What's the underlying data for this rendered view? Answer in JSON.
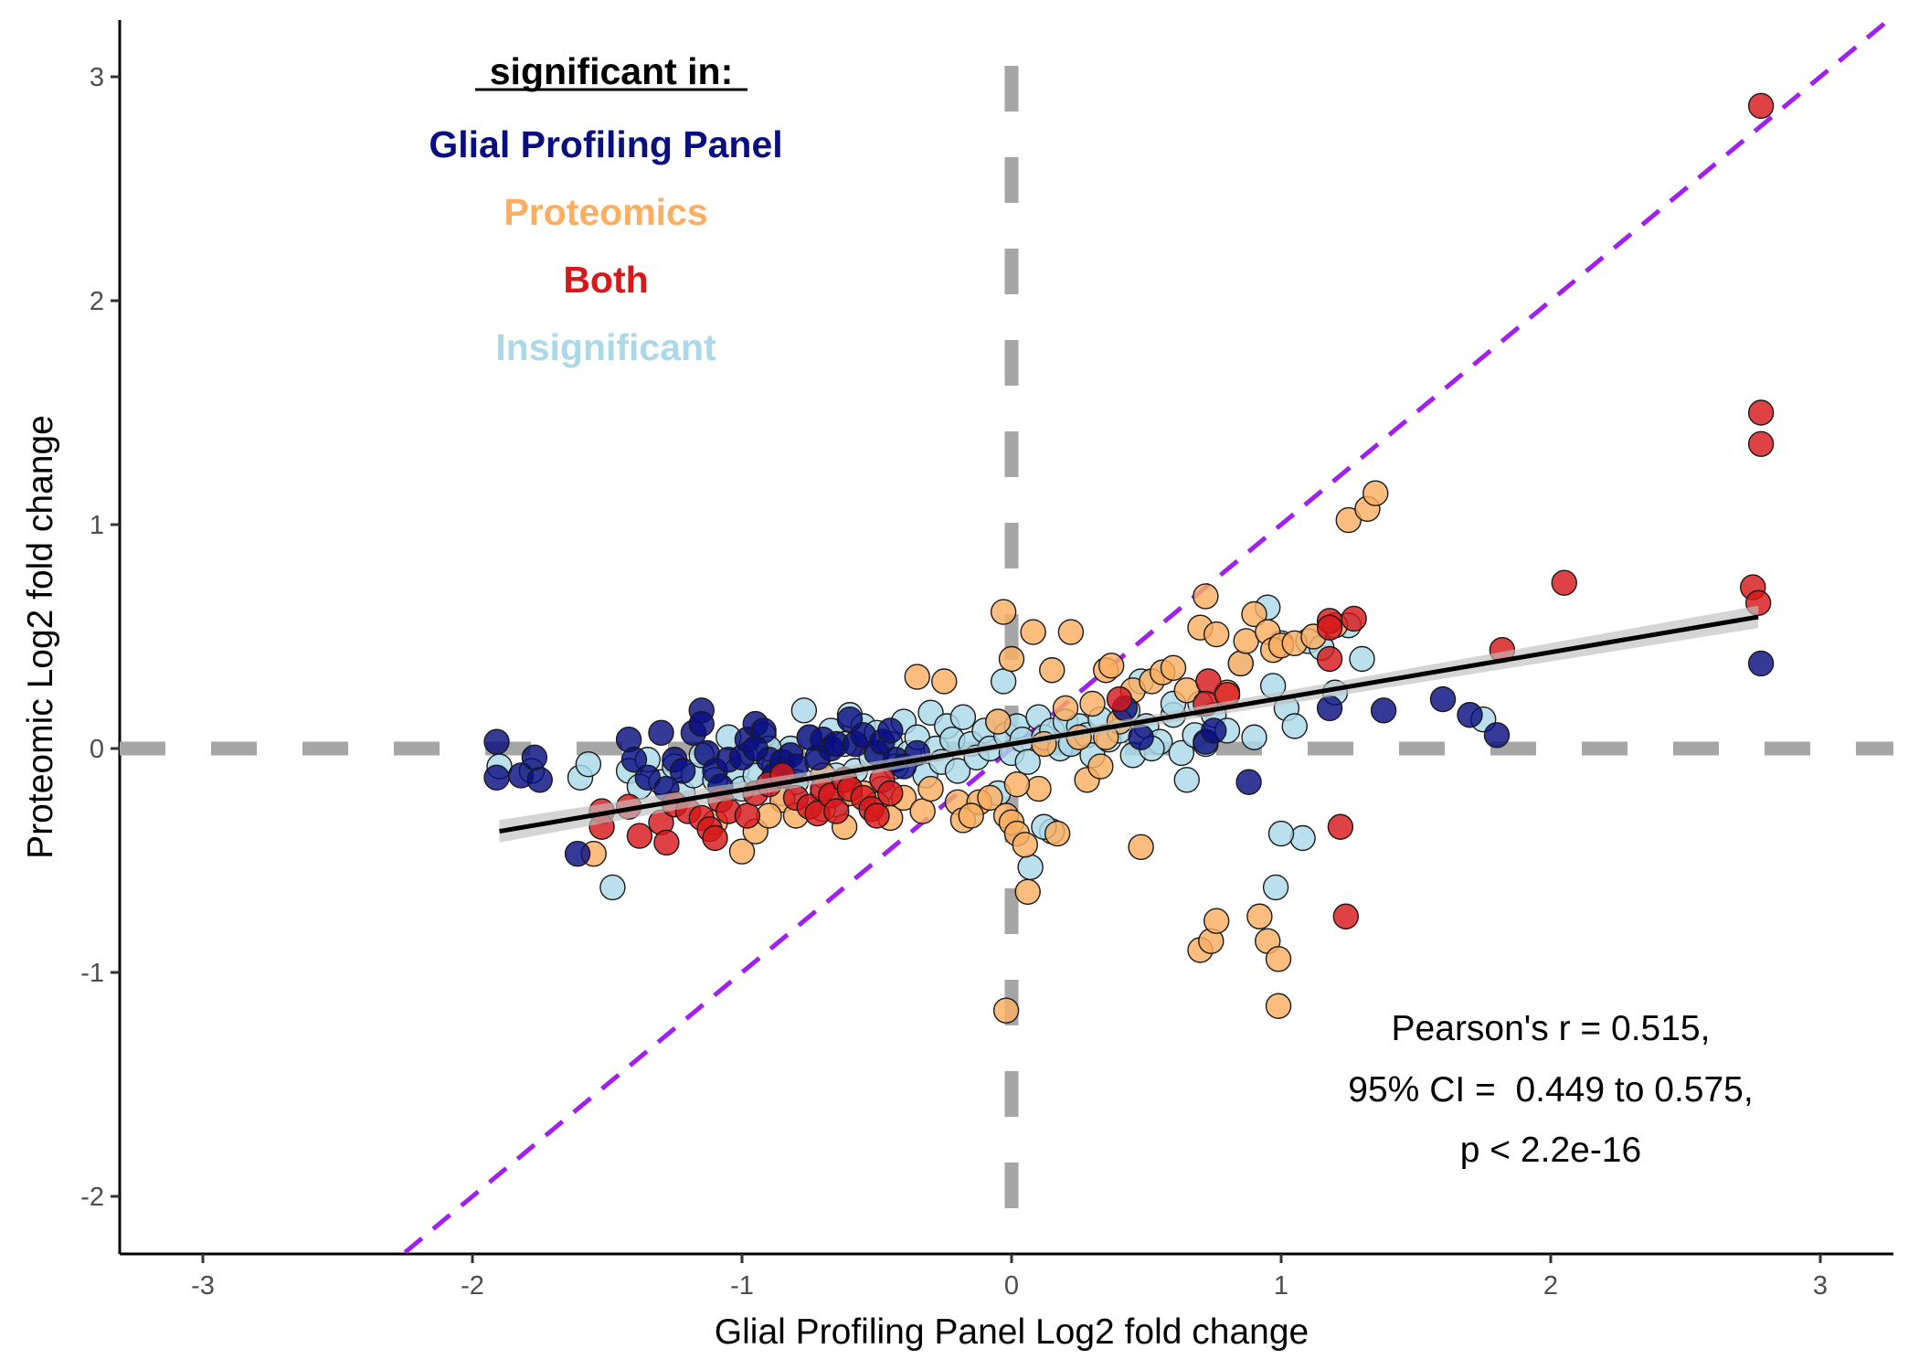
{
  "chart_data": {
    "type": "scatter",
    "xlabel": "Glial Profiling Panel Log2 fold change",
    "ylabel": "Proteomic Log2 fold change",
    "xlim": [
      -3.3,
      3.3
    ],
    "ylim": [
      -2.25,
      3.25
    ],
    "x_ticks": [
      "-3",
      "-2",
      "-1",
      "0",
      "1",
      "2",
      "3"
    ],
    "y_ticks": [
      "-2",
      "-1",
      "0",
      "1",
      "2",
      "3"
    ],
    "x_tick_values": [
      -3,
      -2,
      -1,
      0,
      1,
      2,
      3
    ],
    "y_tick_values": [
      -2,
      -1,
      0,
      1,
      2,
      3
    ],
    "grid": false,
    "legend": {
      "title": "significant in:",
      "placement": "top-left",
      "entries": [
        {
          "label": "Glial Profiling Panel",
          "color": "#0a0f80"
        },
        {
          "label": "Proteomics",
          "color": "#fdae61"
        },
        {
          "label": "Both",
          "color": "#d7191c"
        },
        {
          "label": "Insignificant",
          "color": "#abd9e9"
        }
      ]
    },
    "reference_lines": {
      "vertical_x": 0,
      "horizontal_y": 0,
      "identity_line": "y = x",
      "identity_color": "#a020f0",
      "reference_color": "#a6a6a6"
    },
    "regression": {
      "x_range": [
        -1.9,
        2.77
      ],
      "intercept": 0.02,
      "slope": 0.205,
      "ci_halfwidth_at_ends": 0.05,
      "color": "#000000",
      "band_color": "#bfbfbf"
    },
    "annotation": [
      "Pearson's r = 0.515,",
      "95% CI =  0.449 to 0.575,",
      "p < 2.2e-16"
    ],
    "series": [
      {
        "name": "Insignificant",
        "color": "#abd9e9",
        "points": [
          [
            -1.9,
            -0.08
          ],
          [
            -1.78,
            -0.1
          ],
          [
            -1.6,
            -0.13
          ],
          [
            -1.57,
            -0.07
          ],
          [
            -1.48,
            -0.62
          ],
          [
            -1.42,
            -0.1
          ],
          [
            -1.38,
            -0.17
          ],
          [
            -1.35,
            -0.05
          ],
          [
            -1.3,
            -0.15
          ],
          [
            -1.25,
            -0.08
          ],
          [
            -1.22,
            -0.2
          ],
          [
            -1.18,
            -0.12
          ],
          [
            -1.15,
            -0.03
          ],
          [
            -1.1,
            -0.14
          ],
          [
            -1.05,
            0.05
          ],
          [
            -1.02,
            -0.1
          ],
          [
            -1.0,
            -0.18
          ],
          [
            -0.97,
            -0.02
          ],
          [
            -0.95,
            -0.12
          ],
          [
            -0.92,
            0.06
          ],
          [
            -0.88,
            -0.08
          ],
          [
            -0.85,
            -0.2
          ],
          [
            -0.82,
            0.0
          ],
          [
            -0.8,
            -0.15
          ],
          [
            -0.77,
            0.17
          ],
          [
            -0.75,
            0.05
          ],
          [
            -0.72,
            -0.06
          ],
          [
            -0.7,
            -0.2
          ],
          [
            -0.67,
            0.08
          ],
          [
            -0.65,
            -0.12
          ],
          [
            -0.62,
            0.02
          ],
          [
            -0.6,
            0.15
          ],
          [
            -0.58,
            -0.1
          ],
          [
            -0.55,
            0.1
          ],
          [
            -0.52,
            -0.04
          ],
          [
            -0.5,
            0.07
          ],
          [
            -0.48,
            -0.18
          ],
          [
            -0.45,
            0.02
          ],
          [
            -0.43,
            -0.08
          ],
          [
            -0.4,
            0.12
          ],
          [
            -0.38,
            -0.02
          ],
          [
            -0.35,
            0.05
          ],
          [
            -0.32,
            -0.12
          ],
          [
            -0.3,
            0.16
          ],
          [
            -0.28,
            0.0
          ],
          [
            -0.26,
            -0.06
          ],
          [
            -0.24,
            0.1
          ],
          [
            -0.22,
            0.04
          ],
          [
            -0.2,
            -0.1
          ],
          [
            -0.18,
            0.14
          ],
          [
            -0.15,
            0.02
          ],
          [
            -0.13,
            -0.04
          ],
          [
            -0.1,
            0.08
          ],
          [
            -0.08,
            0.0
          ],
          [
            -0.05,
            0.12
          ],
          [
            -0.03,
            0.3
          ],
          [
            -0.02,
            0.06
          ],
          [
            0.0,
            -0.02
          ],
          [
            0.02,
            0.1
          ],
          [
            0.04,
            0.04
          ],
          [
            0.06,
            -0.06
          ],
          [
            0.07,
            -0.53
          ],
          [
            0.1,
            0.14
          ],
          [
            0.12,
            0.05
          ],
          [
            0.15,
            0.08
          ],
          [
            0.18,
            0.0
          ],
          [
            0.2,
            0.12
          ],
          [
            0.22,
            0.02
          ],
          [
            0.25,
            0.1
          ],
          [
            0.28,
            0.06
          ],
          [
            0.3,
            -0.03
          ],
          [
            0.33,
            0.13
          ],
          [
            0.36,
            0.04
          ],
          [
            0.4,
            0.08
          ],
          [
            0.43,
            0.17
          ],
          [
            0.45,
            -0.03
          ],
          [
            0.5,
            0.1
          ],
          [
            0.55,
            0.03
          ],
          [
            0.6,
            0.15
          ],
          [
            0.63,
            -0.02
          ],
          [
            0.65,
            -0.14
          ],
          [
            0.68,
            0.06
          ],
          [
            0.7,
            0.2
          ],
          [
            0.72,
            0.02
          ],
          [
            0.75,
            0.15
          ],
          [
            0.8,
            0.08
          ],
          [
            0.85,
            0.38
          ],
          [
            0.9,
            0.05
          ],
          [
            0.95,
            0.63
          ],
          [
            0.97,
            0.28
          ],
          [
            1.0,
            0.47
          ],
          [
            1.02,
            0.18
          ],
          [
            1.05,
            0.1
          ],
          [
            1.08,
            -0.4
          ],
          [
            1.0,
            -0.38
          ],
          [
            0.98,
            -0.62
          ],
          [
            1.1,
            0.48
          ],
          [
            1.15,
            0.45
          ],
          [
            1.2,
            0.25
          ],
          [
            1.25,
            0.55
          ],
          [
            1.3,
            0.4
          ],
          [
            0.6,
            0.2
          ],
          [
            0.48,
            0.3
          ],
          [
            0.15,
            -0.37
          ],
          [
            0.52,
            0.0
          ],
          [
            1.75,
            0.13
          ],
          [
            -0.65,
            -0.25
          ],
          [
            -0.9,
            0.0
          ],
          [
            -0.05,
            -0.2
          ],
          [
            0.12,
            -0.35
          ]
        ]
      },
      {
        "name": "Proteomics",
        "color": "#fdae61",
        "points": [
          [
            -1.55,
            -0.47
          ],
          [
            -1.0,
            -0.46
          ],
          [
            -0.95,
            -0.37
          ],
          [
            -0.85,
            -0.23
          ],
          [
            -0.8,
            -0.3
          ],
          [
            -0.7,
            -0.27
          ],
          [
            -0.62,
            -0.35
          ],
          [
            -0.55,
            -0.2
          ],
          [
            -0.5,
            -0.25
          ],
          [
            -0.45,
            -0.31
          ],
          [
            -0.4,
            -0.22
          ],
          [
            -0.35,
            0.32
          ],
          [
            -0.33,
            -0.28
          ],
          [
            -0.3,
            -0.18
          ],
          [
            -0.25,
            0.3
          ],
          [
            -0.2,
            -0.24
          ],
          [
            -0.18,
            -0.32
          ],
          [
            -0.12,
            -0.24
          ],
          [
            -0.08,
            -0.22
          ],
          [
            -0.05,
            0.12
          ],
          [
            -0.03,
            0.61
          ],
          [
            -0.02,
            -0.3
          ],
          [
            0.0,
            0.4
          ],
          [
            0.0,
            -0.33
          ],
          [
            0.02,
            -0.38
          ],
          [
            0.05,
            -0.43
          ],
          [
            0.06,
            -0.64
          ],
          [
            0.08,
            0.52
          ],
          [
            0.1,
            -0.18
          ],
          [
            0.12,
            0.02
          ],
          [
            0.15,
            0.35
          ],
          [
            0.17,
            -0.38
          ],
          [
            0.2,
            0.18
          ],
          [
            0.22,
            0.52
          ],
          [
            0.25,
            0.05
          ],
          [
            0.28,
            -0.14
          ],
          [
            0.3,
            0.2
          ],
          [
            0.35,
            0.35
          ],
          [
            0.37,
            0.37
          ],
          [
            0.4,
            0.12
          ],
          [
            0.45,
            0.26
          ],
          [
            0.48,
            -0.44
          ],
          [
            0.52,
            0.3
          ],
          [
            0.56,
            0.34
          ],
          [
            0.6,
            0.36
          ],
          [
            0.65,
            0.26
          ],
          [
            0.7,
            0.54
          ],
          [
            0.72,
            0.68
          ],
          [
            0.76,
            0.51
          ],
          [
            0.8,
            0.25
          ],
          [
            0.85,
            0.38
          ],
          [
            0.87,
            0.48
          ],
          [
            0.9,
            0.6
          ],
          [
            0.95,
            0.52
          ],
          [
            0.97,
            0.44
          ],
          [
            1.0,
            0.46
          ],
          [
            1.05,
            0.47
          ],
          [
            1.2,
            0.55
          ],
          [
            1.25,
            1.02
          ],
          [
            1.32,
            1.07
          ],
          [
            1.35,
            1.14
          ],
          [
            0.7,
            -0.9
          ],
          [
            0.74,
            -0.86
          ],
          [
            0.76,
            -0.77
          ],
          [
            0.92,
            -0.75
          ],
          [
            0.95,
            -0.86
          ],
          [
            0.99,
            -0.94
          ],
          [
            0.99,
            -1.15
          ],
          [
            -0.02,
            -1.17
          ],
          [
            1.12,
            0.5
          ],
          [
            -1.1,
            -0.33
          ],
          [
            -0.9,
            -0.3
          ],
          [
            -0.7,
            -0.12
          ],
          [
            -0.6,
            -0.2
          ],
          [
            -0.15,
            -0.3
          ],
          [
            0.35,
            0.05
          ],
          [
            0.02,
            -0.16
          ],
          [
            0.33,
            -0.08
          ]
        ]
      },
      {
        "name": "Glial Profiling Panel",
        "color": "#0a0f80",
        "points": [
          [
            -1.91,
            0.03
          ],
          [
            -1.91,
            -0.13
          ],
          [
            -1.82,
            -0.12
          ],
          [
            -1.77,
            -0.04
          ],
          [
            -1.75,
            -0.14
          ],
          [
            -1.61,
            -0.47
          ],
          [
            -1.42,
            0.04
          ],
          [
            -1.35,
            -0.13
          ],
          [
            -1.3,
            0.07
          ],
          [
            -1.28,
            -0.18
          ],
          [
            -1.25,
            -0.05
          ],
          [
            -1.22,
            -0.1
          ],
          [
            -1.18,
            0.07
          ],
          [
            -1.15,
            0.17
          ],
          [
            -1.15,
            0.11
          ],
          [
            -1.13,
            -0.02
          ],
          [
            -1.1,
            -0.1
          ],
          [
            -1.08,
            -0.17
          ],
          [
            -1.05,
            -0.05
          ],
          [
            -1.0,
            -0.04
          ],
          [
            -0.98,
            0.04
          ],
          [
            -0.95,
            0.11
          ],
          [
            -0.92,
            0.08
          ],
          [
            -0.9,
            -0.05
          ],
          [
            -0.88,
            -0.12
          ],
          [
            -0.85,
            -0.06
          ],
          [
            -0.82,
            -0.03
          ],
          [
            -0.8,
            -0.08
          ],
          [
            -0.75,
            0.05
          ],
          [
            -0.72,
            -0.04
          ],
          [
            -0.7,
            0.04
          ],
          [
            -0.67,
            0.0
          ],
          [
            -0.65,
            0.02
          ],
          [
            -0.6,
            0.13
          ],
          [
            -0.58,
            0.02
          ],
          [
            -0.55,
            0.06
          ],
          [
            -0.5,
            -0.02
          ],
          [
            -0.48,
            0.03
          ],
          [
            -0.45,
            0.08
          ],
          [
            -0.43,
            -0.05
          ],
          [
            -0.4,
            -0.08
          ],
          [
            -0.35,
            -0.02
          ],
          [
            0.42,
            0.18
          ],
          [
            0.48,
            0.05
          ],
          [
            0.72,
            0.03
          ],
          [
            0.75,
            0.08
          ],
          [
            0.88,
            -0.15
          ],
          [
            1.18,
            0.18
          ],
          [
            1.38,
            0.17
          ],
          [
            1.6,
            0.22
          ],
          [
            1.7,
            0.15
          ],
          [
            1.8,
            0.06
          ],
          [
            2.78,
            0.38
          ],
          [
            -1.4,
            -0.05
          ],
          [
            -0.95,
            0.0
          ]
        ]
      },
      {
        "name": "Both",
        "color": "#d7191c",
        "points": [
          [
            -1.52,
            -0.28
          ],
          [
            -1.52,
            -0.35
          ],
          [
            -1.42,
            -0.26
          ],
          [
            -1.38,
            -0.39
          ],
          [
            -1.3,
            -0.33
          ],
          [
            -1.28,
            -0.42
          ],
          [
            -1.25,
            -0.25
          ],
          [
            -1.2,
            -0.28
          ],
          [
            -1.15,
            -0.31
          ],
          [
            -1.12,
            -0.36
          ],
          [
            -1.1,
            -0.4
          ],
          [
            -1.08,
            -0.23
          ],
          [
            -1.05,
            -0.28
          ],
          [
            -0.98,
            -0.3
          ],
          [
            -0.95,
            -0.2
          ],
          [
            -0.9,
            -0.16
          ],
          [
            -0.85,
            -0.12
          ],
          [
            -0.8,
            -0.22
          ],
          [
            -0.75,
            -0.26
          ],
          [
            -0.72,
            -0.29
          ],
          [
            -0.7,
            -0.18
          ],
          [
            -0.67,
            -0.21
          ],
          [
            -0.65,
            -0.28
          ],
          [
            -0.62,
            -0.14
          ],
          [
            -0.6,
            -0.18
          ],
          [
            -0.55,
            -0.22
          ],
          [
            -0.52,
            -0.27
          ],
          [
            -0.5,
            -0.3
          ],
          [
            -0.48,
            -0.14
          ],
          [
            -0.45,
            -0.2
          ],
          [
            0.4,
            0.22
          ],
          [
            0.73,
            0.3
          ],
          [
            0.72,
            0.2
          ],
          [
            0.8,
            0.24
          ],
          [
            1.18,
            0.57
          ],
          [
            1.18,
            0.4
          ],
          [
            1.18,
            0.54
          ],
          [
            1.27,
            0.58
          ],
          [
            1.22,
            -0.35
          ],
          [
            1.24,
            -0.75
          ],
          [
            1.82,
            0.44
          ],
          [
            2.05,
            0.74
          ],
          [
            2.75,
            0.72
          ],
          [
            2.77,
            0.65
          ],
          [
            2.78,
            1.5
          ],
          [
            2.78,
            1.36
          ],
          [
            2.78,
            2.87
          ]
        ]
      }
    ]
  }
}
